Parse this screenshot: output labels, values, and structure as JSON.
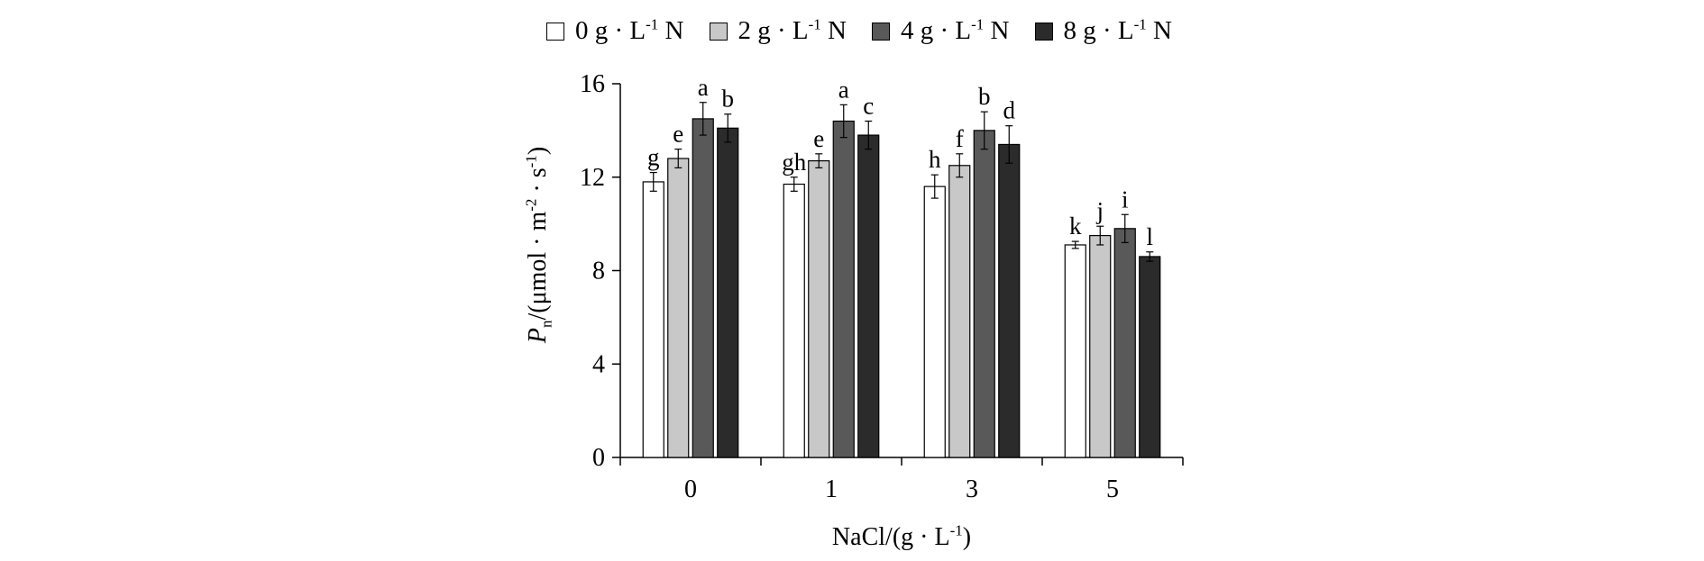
{
  "chart_data": {
    "type": "bar",
    "categories": [
      "0",
      "1",
      "3",
      "5"
    ],
    "series": [
      {
        "name_prefix": "0 g · L",
        "name_sup": "-1",
        "name_suffix": " N",
        "color": "#ffffff",
        "values": [
          11.8,
          11.7,
          11.6,
          9.1
        ],
        "errors": [
          0.4,
          0.3,
          0.5,
          0.15
        ],
        "letters": [
          "g",
          "gh",
          "h",
          "k"
        ]
      },
      {
        "name_prefix": "2 g · L",
        "name_sup": "-1",
        "name_suffix": " N",
        "color": "#c8c8c8",
        "values": [
          12.8,
          12.7,
          12.5,
          9.5
        ],
        "errors": [
          0.4,
          0.3,
          0.5,
          0.4
        ],
        "letters": [
          "e",
          "e",
          "f",
          "j"
        ]
      },
      {
        "name_prefix": "4 g · L",
        "name_sup": "-1",
        "name_suffix": " N",
        "color": "#595959",
        "values": [
          14.5,
          14.4,
          14.0,
          9.8
        ],
        "errors": [
          0.7,
          0.7,
          0.8,
          0.6
        ],
        "letters": [
          "a",
          "a",
          "b",
          "i"
        ]
      },
      {
        "name_prefix": "8 g · L",
        "name_sup": "-1",
        "name_suffix": " N",
        "color": "#2b2b2b",
        "values": [
          14.1,
          13.8,
          13.4,
          8.6
        ],
        "errors": [
          0.6,
          0.6,
          0.8,
          0.2
        ],
        "letters": [
          "b",
          "c",
          "d",
          "l"
        ]
      }
    ],
    "ylim": [
      0,
      16
    ],
    "yticks": [
      "0",
      "4",
      "8",
      "12",
      "16"
    ],
    "ylabel": {
      "main": "P",
      "sub": "n",
      "rest1": "/(μmol · m",
      "sup1": "-2",
      "rest2": " · s",
      "sup2": "-1",
      "rest3": ")"
    },
    "xlabel": {
      "main": "NaCl/(g · L",
      "sup": "-1",
      "rest": ")"
    },
    "legend_position": "top",
    "grid": false
  }
}
